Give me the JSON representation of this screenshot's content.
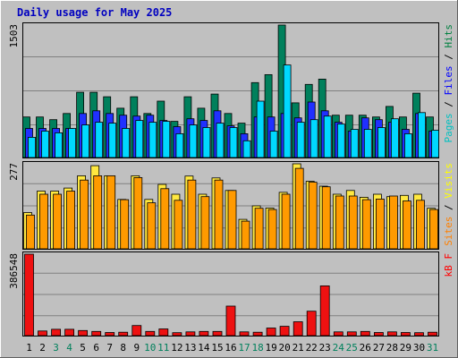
{
  "chart_data": {
    "type": "bar",
    "title": "Daily usage for May 2025",
    "days": [
      "1",
      "2",
      "3",
      "4",
      "5",
      "6",
      "7",
      "8",
      "9",
      "10",
      "11",
      "12",
      "13",
      "14",
      "15",
      "16",
      "17",
      "18",
      "19",
      "20",
      "21",
      "22",
      "23",
      "24",
      "25",
      "26",
      "27",
      "28",
      "29",
      "30",
      "31"
    ],
    "weekend_days": [
      "3",
      "4",
      "10",
      "11",
      "17",
      "18",
      "24",
      "25",
      "31"
    ],
    "panels": [
      {
        "id": "requests",
        "max_label": "1503",
        "ymax": 1503,
        "legend": [
          {
            "name": "Pages",
            "color": "#00c0c0"
          },
          {
            "name": "Files",
            "color": "#0000ff"
          },
          {
            "name": "Hits",
            "color": "#008040"
          }
        ],
        "series": [
          {
            "name": "Hits",
            "color": "#00805c",
            "values": [
              460,
              460,
              430,
              500,
              740,
              740,
              690,
              560,
              690,
              500,
              640,
              410,
              690,
              560,
              720,
              500,
              390,
              850,
              940,
              1503,
              620,
              830,
              890,
              480,
              480,
              480,
              460,
              580,
              460,
              730,
              460
            ]
          },
          {
            "name": "Files",
            "color": "#2030ff",
            "values": [
              330,
              330,
              330,
              330,
              500,
              530,
              500,
              480,
              470,
              480,
              420,
              350,
              440,
              420,
              530,
              360,
              270,
              460,
              460,
              500,
              450,
              630,
              530,
              400,
              300,
              450,
              430,
              400,
              320,
              500,
              300
            ]
          },
          {
            "name": "Pages",
            "color": "#00d8ff",
            "values": [
              230,
              300,
              280,
              330,
              370,
              400,
              390,
              330,
              420,
              400,
              410,
              270,
              370,
              340,
              390,
              340,
              190,
              640,
              300,
              1050,
              400,
              430,
              470,
              380,
              320,
              320,
              340,
              440,
              270,
              510,
              310
            ]
          }
        ]
      },
      {
        "id": "visits",
        "max_label": "277",
        "ymax": 277,
        "legend": [
          {
            "name": "Sites",
            "color": "#ff8000"
          },
          {
            "name": "Visits",
            "color": "#ffff00"
          }
        ],
        "series": [
          {
            "name": "Visits",
            "color": "#ffe840",
            "values": [
              118,
              188,
              188,
              198,
              238,
              271,
              238,
              161,
              238,
              161,
              210,
              178,
              237,
              178,
              231,
              190,
              96,
              140,
              133,
              184,
              277,
              220,
              204,
              178,
              190,
              168,
              178,
              170,
              174,
              178,
              132
            ]
          },
          {
            "name": "Sites",
            "color": "#ff9a00",
            "values": [
              110,
              178,
              178,
              188,
              224,
              238,
              238,
              160,
              232,
              150,
              196,
              158,
              224,
              170,
              224,
              190,
              90,
              132,
              128,
              178,
              262,
              217,
              202,
              172,
              172,
              160,
              162,
              172,
              156,
              158,
              128
            ]
          }
        ]
      },
      {
        "id": "kbytes",
        "max_label": "386548",
        "ymax": 386548,
        "legend": [
          {
            "name": "kB F",
            "color": "#ff0000"
          }
        ],
        "series": [
          {
            "name": "kB F",
            "color": "#ee1111",
            "values": [
              386548,
              22000,
              30000,
              30000,
              24000,
              20000,
              15000,
              16000,
              48000,
              20000,
              32000,
              14000,
              18000,
              20000,
              20000,
              140000,
              18000,
              16000,
              36000,
              44000,
              66000,
              116000,
              236000,
              18000,
              18000,
              20000,
              15000,
              18000,
              15000,
              14000,
              16000
            ]
          }
        ]
      }
    ]
  }
}
